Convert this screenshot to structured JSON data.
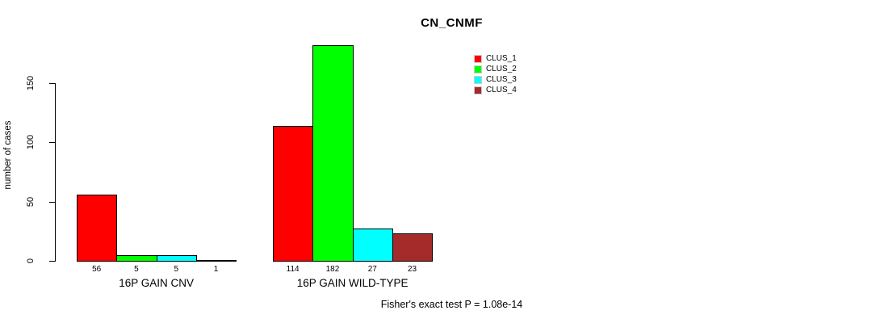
{
  "chart_data": {
    "type": "bar",
    "title": "CN_CNMF",
    "xlabel": "",
    "ylabel": "number of cases",
    "ylim": [
      0,
      150
    ],
    "yticks": [
      0,
      50,
      100,
      150
    ],
    "categories": [
      "16P GAIN CNV",
      "16P GAIN WILD-TYPE"
    ],
    "series": [
      {
        "name": "CLUS_1",
        "color": "#ff0000",
        "values": [
          56,
          114
        ]
      },
      {
        "name": "CLUS_2",
        "color": "#00ff00",
        "values": [
          5,
          182
        ]
      },
      {
        "name": "CLUS_3",
        "color": "#00ffff",
        "values": [
          5,
          27
        ]
      },
      {
        "name": "CLUS_4",
        "color": "#a52a2a",
        "values": [
          1,
          23
        ]
      }
    ],
    "bar_border_color": "#000000",
    "legend_position": "top-right",
    "grid": false,
    "annotation": "Fisher's exact test P = 1.08e-14"
  }
}
